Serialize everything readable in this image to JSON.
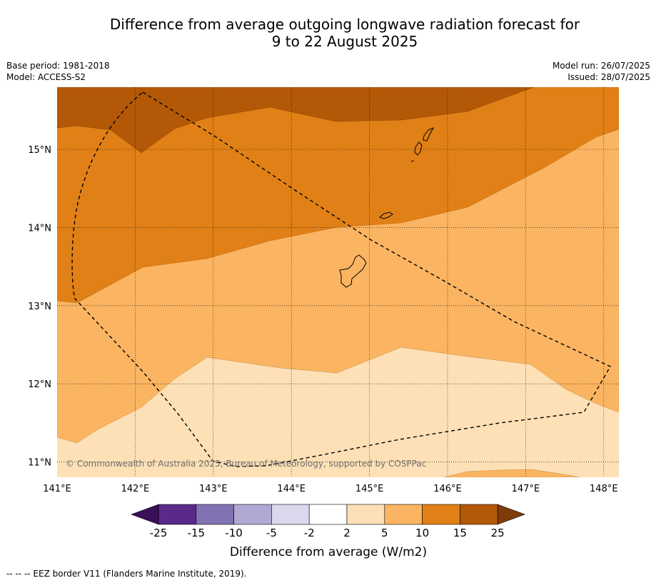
{
  "title_line1": "Difference from average outgoing longwave radiation forecast for",
  "title_line2": "9 to 22 August 2025",
  "base_period": "Base period: 1981-2018",
  "model": "Model: ACCESS-S2",
  "model_run": "Model run: 26/07/2025",
  "issued": "Issued: 28/07/2025",
  "copyright": "© Commonwealth of Australia 2025, Bureau of Meteorology, supported by COSPPac",
  "footer": "-- -- -- EEZ border V11 (Flanders Marine Institute, 2019).",
  "map": {
    "lat_ticks": [
      "15°N",
      "14°N",
      "13°N",
      "12°N",
      "11°N"
    ],
    "lon_ticks": [
      "141°E",
      "142°E",
      "143°E",
      "144°E",
      "145°E",
      "146°E",
      "147°E",
      "148°E"
    ]
  },
  "colorbar": {
    "label": "Difference from average (W/m2)",
    "ticks": [
      "-25",
      "-15",
      "-10",
      "-5",
      "-2",
      "2",
      "5",
      "10",
      "15",
      "25"
    ],
    "colors": {
      "lt_neg25": "#3b0f5a",
      "neg25_neg15": "#5a2a8a",
      "neg15_neg10": "#8172b2",
      "neg10_neg5": "#b1a9d4",
      "neg5_neg2": "#d9d8ec",
      "neg2_2": "#ffffff",
      "c2_5": "#fde0b6",
      "c5_10": "#fbb461",
      "c10_15": "#e08016",
      "c15_25": "#b35806",
      "gt_25": "#7f3b08"
    }
  }
}
